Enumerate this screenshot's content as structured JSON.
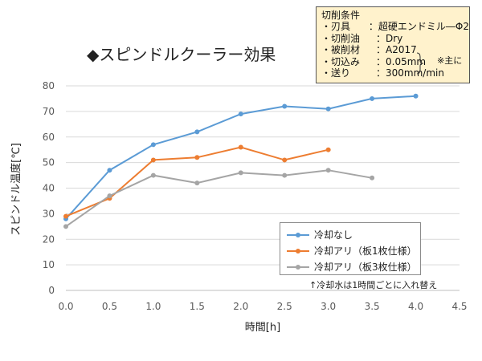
{
  "title": "◆スピンドルクーラー効果",
  "conditions": {
    "heading": "切削条件",
    "rows": [
      {
        "label": "・刃具",
        "value": "：超硬エンドミル―Φ2"
      },
      {
        "label": "・切削油",
        "value": "：Dry"
      },
      {
        "label": "・被削材",
        "value": "：A2017"
      },
      {
        "label": "・切込み",
        "value": "：0.05mm"
      },
      {
        "label": "・送り",
        "value": "：300mm/min"
      }
    ],
    "note": "※主に"
  },
  "footnote": "↑冷却水は1時間ごとに入れ替え",
  "chart_data": {
    "type": "line",
    "title": "◆スピンドルクーラー効果",
    "xlabel": "時間[h]",
    "ylabel": "スピンドル温度[℃]",
    "xlim": [
      0,
      4.5
    ],
    "ylim": [
      0,
      80
    ],
    "xticks": [
      "0.0",
      "0.5",
      "1.0",
      "1.5",
      "2.0",
      "2.5",
      "3.0",
      "3.5",
      "4.0",
      "4.5"
    ],
    "yticks": [
      "0",
      "10",
      "20",
      "30",
      "40",
      "50",
      "60",
      "70",
      "80"
    ],
    "grid": "horizontal",
    "legend_position": "bottom-right",
    "series": [
      {
        "name": "冷却なし",
        "color": "#5b9bd5",
        "x": [
          0,
          0.5,
          1.0,
          1.5,
          2.0,
          2.5,
          3.0,
          3.5,
          4.0
        ],
        "values": [
          28,
          47,
          57,
          62,
          69,
          72,
          71,
          75,
          76
        ]
      },
      {
        "name": "冷却アリ（板1枚仕様）",
        "color": "#ed7d31",
        "x": [
          0,
          0.5,
          1.0,
          1.5,
          2.0,
          2.5,
          3.0
        ],
        "values": [
          29,
          36,
          51,
          52,
          56,
          51,
          55
        ]
      },
      {
        "name": "冷却アリ（板3枚仕様）",
        "color": "#a5a5a5",
        "x": [
          0,
          0.5,
          1.0,
          1.5,
          2.0,
          2.5,
          3.0,
          3.5
        ],
        "values": [
          25,
          37,
          45,
          42,
          46,
          45,
          47,
          44
        ]
      }
    ]
  }
}
